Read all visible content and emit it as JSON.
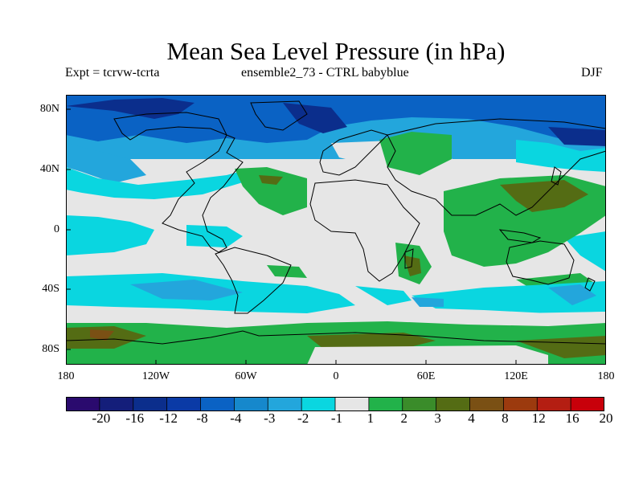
{
  "title": "Mean Sea Level Pressure (in hPa)",
  "subtitle_left": "Expt = tcrvw-tcrta",
  "subtitle_center": "ensemble2_73 - CTRL babyblue",
  "subtitle_right": "DJF",
  "lat_labels": [
    "80N",
    "40N",
    "0",
    "40S",
    "80S"
  ],
  "lon_labels": [
    "180",
    "120W",
    "60W",
    "0",
    "60E",
    "120E",
    "180"
  ],
  "colorbar": {
    "labels": [
      "-20",
      "-16",
      "-12",
      "-8",
      "-4",
      "-3",
      "-2",
      "-1",
      "1",
      "2",
      "3",
      "4",
      "8",
      "12",
      "16",
      "20"
    ],
    "colors": [
      "#2a0a6e",
      "#141e7a",
      "#0b2e8c",
      "#0a3aa6",
      "#0a62c4",
      "#1688cc",
      "#23a6dc",
      "#0ad6e0",
      "#e6e6e6",
      "#22b24a",
      "#3a8c2a",
      "#546c14",
      "#7a5014",
      "#9c3a0e",
      "#b41e12",
      "#c8000a"
    ]
  },
  "colors": {
    "neutral": "#e6e6e6",
    "ocean_negative_light": "#0ad6e0",
    "ocean_negative": "#23a6dc",
    "ocean_negative_strong": "#0a62c4",
    "positive": "#22b24a",
    "positive_strong": "#546c14"
  }
}
